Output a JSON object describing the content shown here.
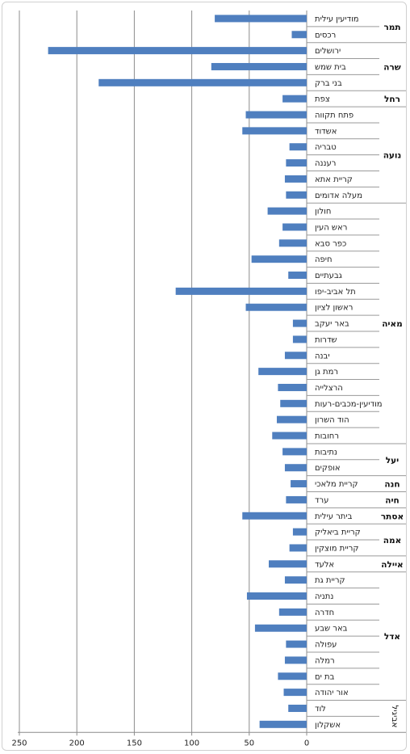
{
  "chart_data": {
    "type": "bar",
    "orientation": "horizontal",
    "title": "",
    "xlabel": "",
    "ylabel": "",
    "xlim": [
      0,
      250
    ],
    "x_ticks": [
      250,
      200,
      150,
      100,
      50,
      0
    ],
    "grid": true,
    "legend": "none",
    "bar_color": "#4f7fbf",
    "categories": [
      "מודיעין עילית",
      "רכסים",
      "ירושלים",
      "בית שמש",
      "בני ברק",
      "צפת",
      "פתח תקווה",
      "אשדוד",
      "טבריה",
      "רעננה",
      "קריית אתא",
      "מעלה אדומים",
      "חולון",
      "ראש העין",
      "כפר סבא",
      "חיפה",
      "גבעתיים",
      "תל אביב-יפו",
      "ראשון לציון",
      "באר יעקב",
      "שדרות",
      "יבנה",
      "רמת גן",
      "הרצלייה",
      "מודיעין-מכבים-רעות",
      "הוד השרון",
      "רחובות",
      "נתיבות",
      "אופקים",
      "קריית מלאכי",
      "ערד",
      "ביתר עילית",
      "קריית ביאליק",
      "קריית מוצקין",
      "אלעד",
      "קריית גת",
      "נתניה",
      "חדרה",
      "באר שבע",
      "עפולה",
      "רמלה",
      "בת ים",
      "אור יהודה",
      "לוד",
      "אשקלון"
    ],
    "values": [
      80,
      13,
      225,
      83,
      181,
      21,
      53,
      56,
      15,
      18,
      19,
      18,
      34,
      21,
      24,
      48,
      16,
      114,
      53,
      12,
      12,
      19,
      42,
      25,
      23,
      26,
      30,
      21,
      19,
      14,
      18,
      56,
      12,
      15,
      33,
      19,
      52,
      24,
      45,
      18,
      19,
      25,
      20,
      16,
      41
    ],
    "groups": [
      {
        "name": "תמר",
        "start": 0,
        "end": 1
      },
      {
        "name": "שרה",
        "start": 2,
        "end": 4
      },
      {
        "name": "רחל",
        "start": 5,
        "end": 5
      },
      {
        "name": "נועה",
        "start": 6,
        "end": 11
      },
      {
        "name": "מאיה",
        "start": 12,
        "end": 26
      },
      {
        "name": "יעל",
        "start": 27,
        "end": 28
      },
      {
        "name": "חנה",
        "start": 29,
        "end": 29
      },
      {
        "name": "חיה",
        "start": 30,
        "end": 30
      },
      {
        "name": "אסתר",
        "start": 31,
        "end": 31
      },
      {
        "name": "אמה",
        "start": 32,
        "end": 33
      },
      {
        "name": "איילה",
        "start": 34,
        "end": 34
      },
      {
        "name": "אדל",
        "start": 35,
        "end": 42
      },
      {
        "name": "אביגיל",
        "start": 43,
        "end": 44
      }
    ]
  }
}
